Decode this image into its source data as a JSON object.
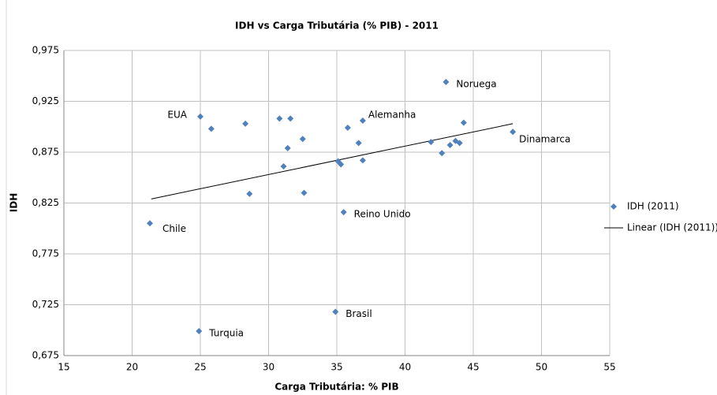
{
  "chart_data": {
    "type": "scatter",
    "title": "IDH vs Carga Tributária (% PIB) - 2011",
    "xlabel": "Carga Tributária: % PIB",
    "ylabel": "IDH",
    "series": [
      {
        "name": "IDH (2011)",
        "color": "#4f81bd",
        "x": [
          25.0,
          25.8,
          28.3,
          30.8,
          31.6,
          32.5,
          31.4,
          31.1,
          28.6,
          32.6,
          35.8,
          36.9,
          36.6,
          35.1,
          35.3,
          36.9,
          35.5,
          34.9,
          24.9,
          21.3,
          43.0,
          44.3,
          41.9,
          42.7,
          43.3,
          43.7,
          44.0,
          47.9
        ],
        "values": [
          0.91,
          0.898,
          0.903,
          0.908,
          0.908,
          0.888,
          0.879,
          0.861,
          0.834,
          0.835,
          0.899,
          0.906,
          0.884,
          0.866,
          0.863,
          0.867,
          0.816,
          0.718,
          0.699,
          0.805,
          0.944,
          0.904,
          0.885,
          0.874,
          0.882,
          0.886,
          0.884,
          0.895
        ],
        "labels": [
          "EUA",
          null,
          null,
          null,
          null,
          null,
          null,
          null,
          null,
          null,
          null,
          "Alemanha",
          null,
          null,
          null,
          null,
          "Reino Unido",
          "Brasil",
          "Turquia",
          "Chile",
          "Noruega",
          null,
          null,
          null,
          null,
          null,
          null,
          "Dinamarca"
        ]
      }
    ],
    "trendline": {
      "name": "Linear (IDH (2011))",
      "color": "#000000",
      "x": [
        21.4,
        47.9
      ],
      "values": [
        0.829,
        0.903
      ]
    },
    "xlim": [
      15,
      55
    ],
    "xticks": [
      15,
      20,
      25,
      30,
      35,
      40,
      45,
      50,
      55
    ],
    "ylim": [
      0.675,
      0.975
    ],
    "yticks": [
      {
        "value": 0.675,
        "label": "0,675"
      },
      {
        "value": 0.725,
        "label": "0,725"
      },
      {
        "value": 0.775,
        "label": "0,775"
      },
      {
        "value": 0.825,
        "label": "0,825"
      },
      {
        "value": 0.875,
        "label": "0,875"
      },
      {
        "value": 0.925,
        "label": "0,925"
      },
      {
        "value": 0.975,
        "label": "0,975"
      }
    ],
    "grid": true,
    "legend": "right"
  }
}
